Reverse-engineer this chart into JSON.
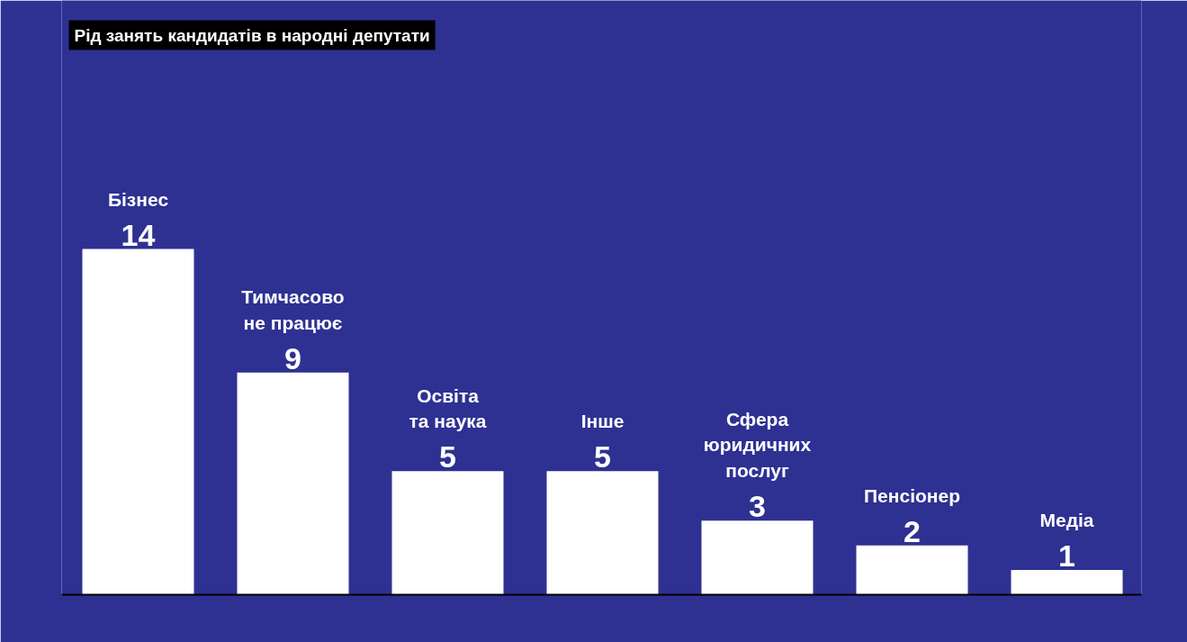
{
  "chart_data": {
    "type": "bar",
    "title": "Рід занять кандидатів в народні депутати",
    "categories": [
      "Бізнес",
      "Тимчасово\nне працює",
      "Освіта\nта наука",
      "Інше",
      "Сфера\nюридичних\nпослуг",
      "Пенсіонер",
      "Медіа"
    ],
    "values": [
      14,
      9,
      5,
      5,
      3,
      2,
      1
    ],
    "color": "#ffffff",
    "data_labels": true,
    "grid": false
  }
}
